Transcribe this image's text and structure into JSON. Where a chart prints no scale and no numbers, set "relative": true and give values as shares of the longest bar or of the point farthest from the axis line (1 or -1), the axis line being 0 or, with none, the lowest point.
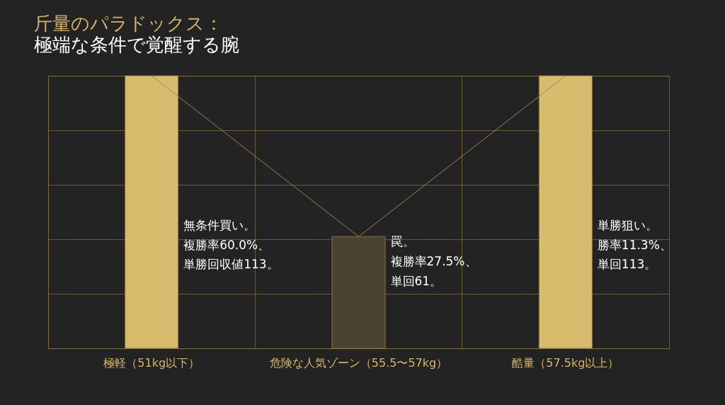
{
  "chart_data": {
    "type": "bar",
    "title": "斤量のパラドックス：",
    "subtitle": "極端な条件で覚醒する腕",
    "relative": true,
    "grid": true,
    "categories": [
      "極軽（51kg以下）",
      "危険な人気ゾーン（55.5〜57kg）",
      "酷量（57.5kg以上）"
    ],
    "series": [
      {
        "colors": [
          "#d9bb6e",
          "#4a4230",
          "#d9bb6e"
        ],
        "values": [
          1,
          0.41,
          1
        ]
      },
      {
        "type": "line",
        "color": "#a08650",
        "values": [
          1,
          0.41,
          1
        ]
      }
    ],
    "annotations": [
      "無条件買い。",
      "複勝率60.0%、",
      "単勝回収値113。",
      "罠。",
      "複勝率27.5%、",
      "単回61。",
      "単勝狙い。",
      "勝率11.3%、",
      "単回113。"
    ]
  }
}
